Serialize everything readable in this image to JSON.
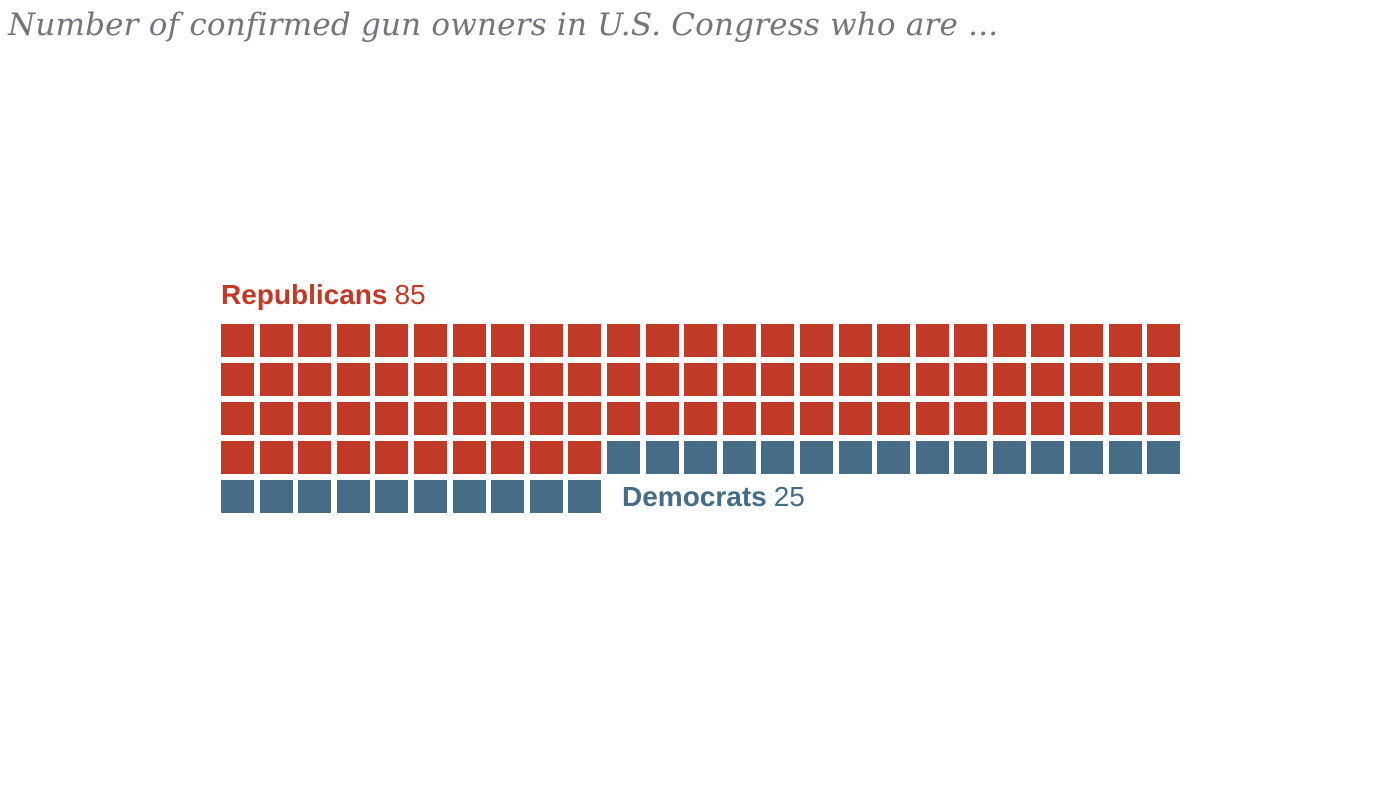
{
  "title": "Number of confirmed gun owners in U.S. Congress who are ...",
  "colors": {
    "republican_red": "#C13A28",
    "democrat_blue": "#466C87",
    "title_gray": "#74747B",
    "background": "#FFFFFF"
  },
  "series": {
    "republicans": {
      "label": "Republicans",
      "value": 85,
      "color": "#C13A28"
    },
    "democrats": {
      "label": "Democrats",
      "value": 25,
      "color": "#466C87"
    }
  },
  "chart_data": {
    "type": "waffle",
    "title": "Number of confirmed gun owners in U.S. Congress who are ...",
    "columns": 25,
    "square_value": 1,
    "total_squares": 110,
    "series": [
      {
        "name": "Republicans",
        "value": 85,
        "color": "#C13A28"
      },
      {
        "name": "Democrats",
        "value": 25,
        "color": "#466C87"
      }
    ],
    "legend_position": {
      "republicans": "above grid, left-aligned",
      "democrats": "inline to the right of the last row"
    },
    "grid": "off",
    "notes": "Rows of 25 squares; rows 1-3 fully red, row 4 has 10 red then 15 blue, row 5 has 10 blue."
  }
}
